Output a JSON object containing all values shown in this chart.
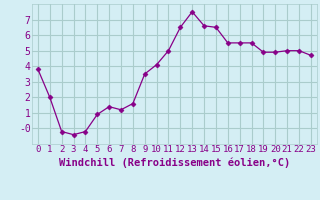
{
  "x": [
    0,
    1,
    2,
    3,
    4,
    5,
    6,
    7,
    8,
    9,
    10,
    11,
    12,
    13,
    14,
    15,
    16,
    17,
    18,
    19,
    20,
    21,
    22,
    23
  ],
  "y": [
    3.8,
    2.0,
    -0.2,
    -0.4,
    -0.2,
    0.9,
    1.4,
    1.2,
    1.6,
    3.5,
    4.1,
    5.0,
    6.5,
    7.5,
    6.6,
    6.5,
    5.5,
    5.5,
    5.5,
    4.9,
    4.9,
    5.0,
    5.0,
    4.7
  ],
  "line_color": "#880088",
  "marker": "D",
  "marker_size": 2.5,
  "bg_color": "#d4eef4",
  "grid_color": "#aacccc",
  "xlabel": "Windchill (Refroidissement éolien,°C)",
  "ylim": [
    -1,
    8
  ],
  "xlim": [
    -0.5,
    23.5
  ],
  "ytick_vals": [
    0,
    1,
    2,
    3,
    4,
    5,
    6,
    7
  ],
  "ytick_labels": [
    "-0",
    "1",
    "2",
    "3",
    "4",
    "5",
    "6",
    "7"
  ],
  "xtick_labels": [
    "0",
    "1",
    "2",
    "3",
    "4",
    "5",
    "6",
    "7",
    "8",
    "9",
    "10",
    "11",
    "12",
    "13",
    "14",
    "15",
    "16",
    "17",
    "18",
    "19",
    "20",
    "21",
    "22",
    "23"
  ],
  "font_color": "#880088",
  "tick_fontsize": 6.5,
  "xlabel_fontsize": 7.5
}
